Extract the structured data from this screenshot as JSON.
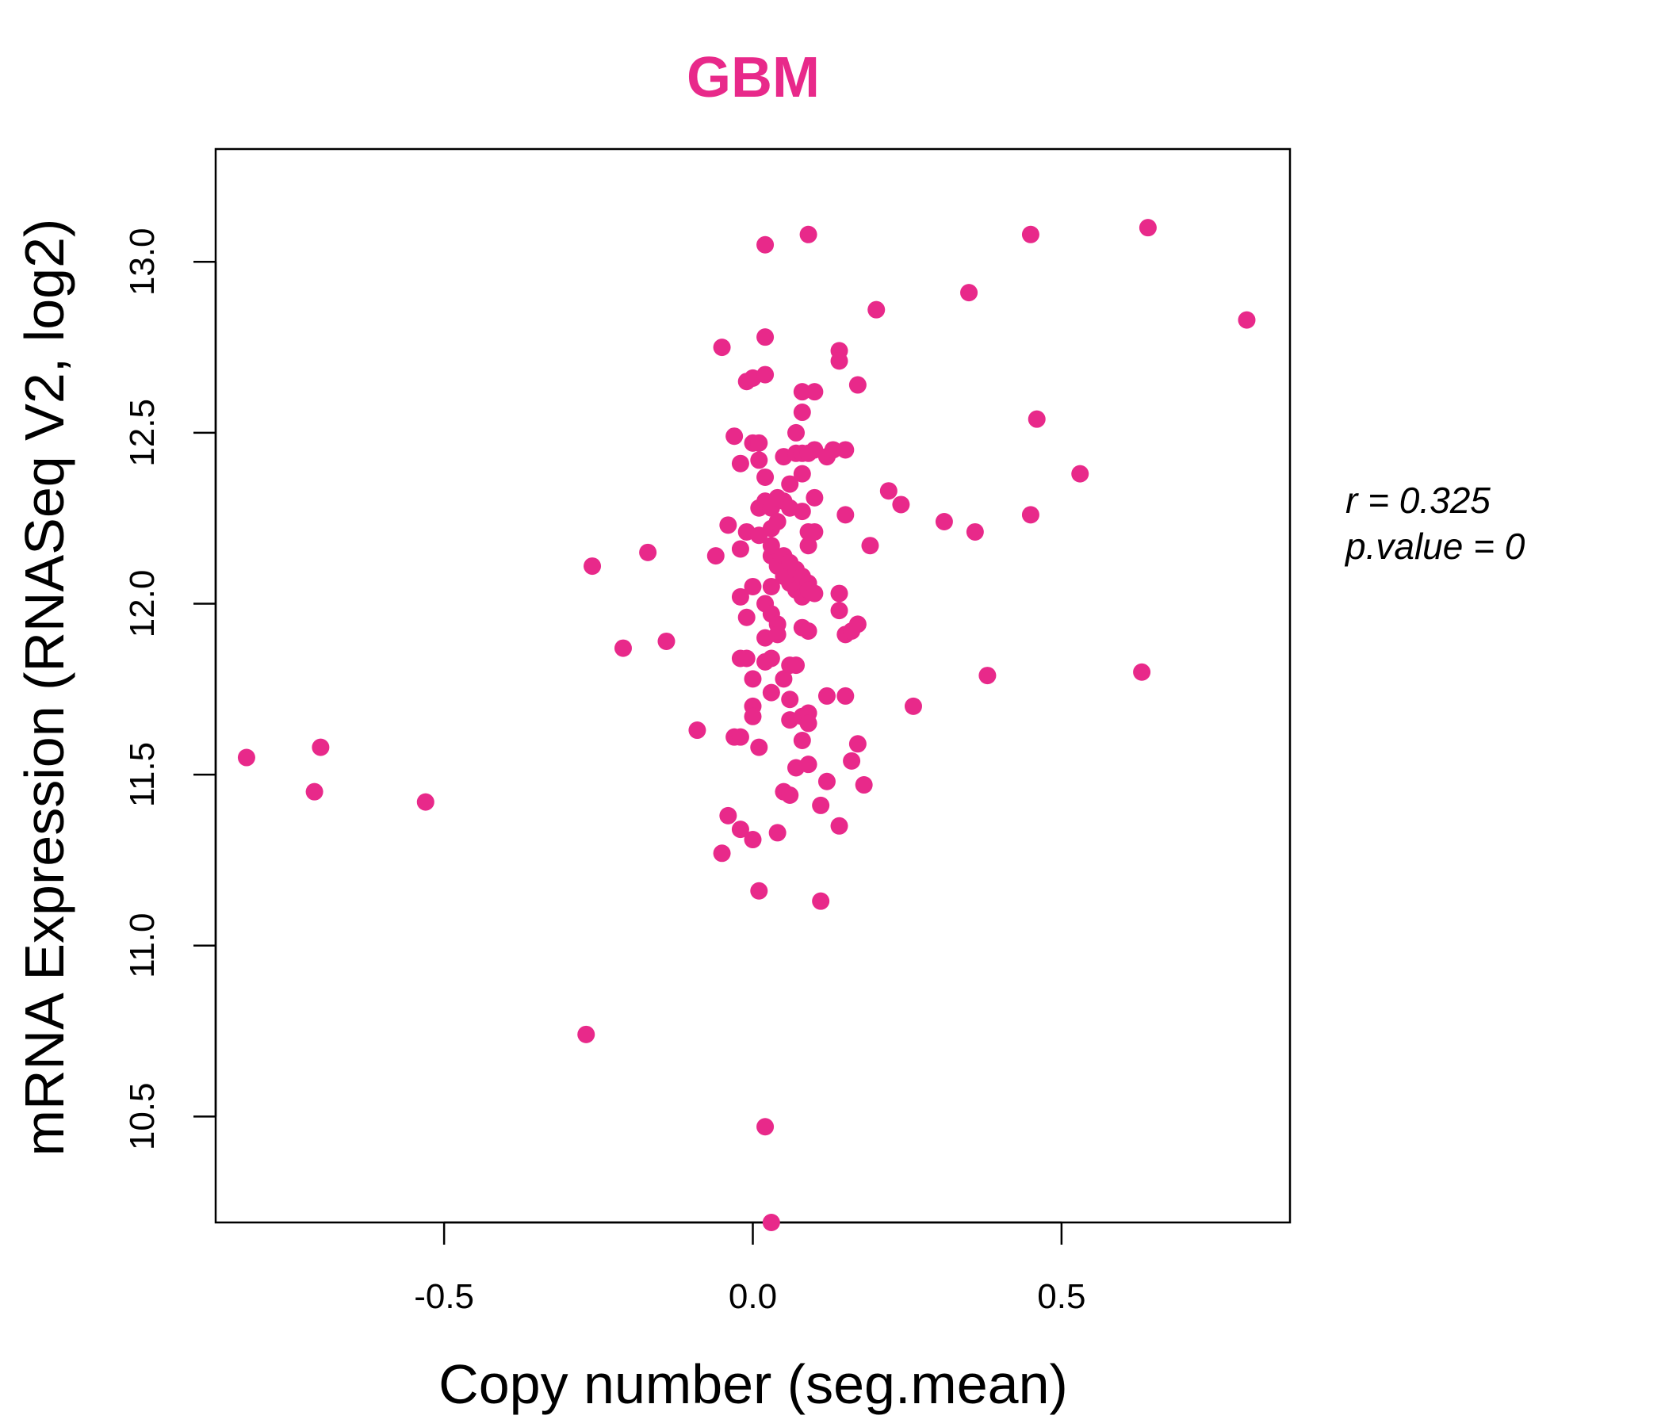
{
  "chart_data": {
    "type": "scatter",
    "title": "GBM",
    "xlabel": "Copy number (seg.mean)",
    "ylabel": "mRNA Expression (RNASeq V2, log2)",
    "xlim": [
      -0.87,
      0.87
    ],
    "ylim": [
      10.19,
      13.33
    ],
    "x_ticks": [
      -0.5,
      0.0,
      0.5
    ],
    "x_tick_labels": [
      "-0.5",
      "0.0",
      "0.5"
    ],
    "y_ticks": [
      10.5,
      11.0,
      11.5,
      12.0,
      12.5,
      13.0
    ],
    "y_tick_labels": [
      "10.5",
      "11.0",
      "11.5",
      "12.0",
      "12.5",
      "13.0"
    ],
    "grid": false,
    "point_color": "#e8298a",
    "title_color": "#e8298a",
    "stats": {
      "r_label": "r = 0.325",
      "p_label": "p.value = 0"
    },
    "points": [
      {
        "x": -0.82,
        "y": 11.55
      },
      {
        "x": -0.7,
        "y": 11.58
      },
      {
        "x": -0.71,
        "y": 11.45
      },
      {
        "x": -0.53,
        "y": 11.42
      },
      {
        "x": -0.26,
        "y": 12.11
      },
      {
        "x": -0.27,
        "y": 10.74
      },
      {
        "x": -0.21,
        "y": 11.87
      },
      {
        "x": -0.17,
        "y": 12.15
      },
      {
        "x": -0.14,
        "y": 11.89
      },
      {
        "x": -0.09,
        "y": 11.63
      },
      {
        "x": -0.06,
        "y": 12.14
      },
      {
        "x": -0.05,
        "y": 12.75
      },
      {
        "x": -0.05,
        "y": 11.27
      },
      {
        "x": -0.04,
        "y": 11.38
      },
      {
        "x": -0.04,
        "y": 12.23
      },
      {
        "x": -0.03,
        "y": 12.49
      },
      {
        "x": -0.03,
        "y": 11.61
      },
      {
        "x": -0.02,
        "y": 12.41
      },
      {
        "x": -0.02,
        "y": 12.16
      },
      {
        "x": -0.02,
        "y": 12.02
      },
      {
        "x": -0.02,
        "y": 11.84
      },
      {
        "x": -0.02,
        "y": 11.61
      },
      {
        "x": -0.02,
        "y": 11.34
      },
      {
        "x": -0.01,
        "y": 12.65
      },
      {
        "x": -0.01,
        "y": 12.21
      },
      {
        "x": -0.01,
        "y": 11.96
      },
      {
        "x": -0.01,
        "y": 11.84
      },
      {
        "x": 0.0,
        "y": 12.66
      },
      {
        "x": 0.0,
        "y": 12.47
      },
      {
        "x": 0.0,
        "y": 12.05
      },
      {
        "x": 0.0,
        "y": 11.78
      },
      {
        "x": 0.0,
        "y": 11.7
      },
      {
        "x": 0.0,
        "y": 11.67
      },
      {
        "x": 0.0,
        "y": 11.31
      },
      {
        "x": 0.01,
        "y": 12.42
      },
      {
        "x": 0.01,
        "y": 12.28
      },
      {
        "x": 0.01,
        "y": 11.58
      },
      {
        "x": 0.01,
        "y": 12.47
      },
      {
        "x": 0.01,
        "y": 12.2
      },
      {
        "x": 0.01,
        "y": 11.16
      },
      {
        "x": 0.02,
        "y": 12.37
      },
      {
        "x": 0.02,
        "y": 12.3
      },
      {
        "x": 0.02,
        "y": 12.0
      },
      {
        "x": 0.02,
        "y": 11.9
      },
      {
        "x": 0.02,
        "y": 11.83
      },
      {
        "x": 0.02,
        "y": 10.47
      },
      {
        "x": 0.02,
        "y": 13.05
      },
      {
        "x": 0.02,
        "y": 12.78
      },
      {
        "x": 0.02,
        "y": 12.67
      },
      {
        "x": 0.03,
        "y": 12.28
      },
      {
        "x": 0.03,
        "y": 12.14
      },
      {
        "x": 0.03,
        "y": 12.05
      },
      {
        "x": 0.03,
        "y": 11.74
      },
      {
        "x": 0.03,
        "y": 12.22
      },
      {
        "x": 0.03,
        "y": 12.17
      },
      {
        "x": 0.03,
        "y": 11.97
      },
      {
        "x": 0.03,
        "y": 11.84
      },
      {
        "x": 0.03,
        "y": 10.19
      },
      {
        "x": 0.04,
        "y": 12.31
      },
      {
        "x": 0.04,
        "y": 12.24
      },
      {
        "x": 0.04,
        "y": 12.11
      },
      {
        "x": 0.04,
        "y": 11.94
      },
      {
        "x": 0.04,
        "y": 11.91
      },
      {
        "x": 0.04,
        "y": 11.33
      },
      {
        "x": 0.05,
        "y": 12.43
      },
      {
        "x": 0.05,
        "y": 12.3
      },
      {
        "x": 0.05,
        "y": 12.14
      },
      {
        "x": 0.05,
        "y": 12.08
      },
      {
        "x": 0.05,
        "y": 11.78
      },
      {
        "x": 0.05,
        "y": 11.45
      },
      {
        "x": 0.06,
        "y": 12.35
      },
      {
        "x": 0.06,
        "y": 12.28
      },
      {
        "x": 0.06,
        "y": 12.12
      },
      {
        "x": 0.06,
        "y": 12.06
      },
      {
        "x": 0.06,
        "y": 11.82
      },
      {
        "x": 0.06,
        "y": 11.72
      },
      {
        "x": 0.06,
        "y": 11.66
      },
      {
        "x": 0.06,
        "y": 11.44
      },
      {
        "x": 0.07,
        "y": 12.5
      },
      {
        "x": 0.07,
        "y": 12.44
      },
      {
        "x": 0.07,
        "y": 12.1
      },
      {
        "x": 0.07,
        "y": 12.04
      },
      {
        "x": 0.07,
        "y": 11.82
      },
      {
        "x": 0.07,
        "y": 11.52
      },
      {
        "x": 0.08,
        "y": 12.56
      },
      {
        "x": 0.08,
        "y": 12.38
      },
      {
        "x": 0.08,
        "y": 12.27
      },
      {
        "x": 0.08,
        "y": 12.08
      },
      {
        "x": 0.08,
        "y": 11.67
      },
      {
        "x": 0.08,
        "y": 12.62
      },
      {
        "x": 0.08,
        "y": 12.44
      },
      {
        "x": 0.08,
        "y": 12.02
      },
      {
        "x": 0.08,
        "y": 11.93
      },
      {
        "x": 0.08,
        "y": 11.6
      },
      {
        "x": 0.09,
        "y": 12.17
      },
      {
        "x": 0.09,
        "y": 12.06
      },
      {
        "x": 0.09,
        "y": 11.68
      },
      {
        "x": 0.09,
        "y": 11.53
      },
      {
        "x": 0.09,
        "y": 13.08
      },
      {
        "x": 0.09,
        "y": 12.44
      },
      {
        "x": 0.09,
        "y": 12.21
      },
      {
        "x": 0.09,
        "y": 12.04
      },
      {
        "x": 0.09,
        "y": 11.92
      },
      {
        "x": 0.09,
        "y": 11.65
      },
      {
        "x": 0.1,
        "y": 12.62
      },
      {
        "x": 0.1,
        "y": 12.31
      },
      {
        "x": 0.1,
        "y": 12.21
      },
      {
        "x": 0.1,
        "y": 12.03
      },
      {
        "x": 0.1,
        "y": 12.45
      },
      {
        "x": 0.11,
        "y": 11.41
      },
      {
        "x": 0.11,
        "y": 11.13
      },
      {
        "x": 0.12,
        "y": 11.48
      },
      {
        "x": 0.12,
        "y": 12.43
      },
      {
        "x": 0.12,
        "y": 11.73
      },
      {
        "x": 0.13,
        "y": 12.45
      },
      {
        "x": 0.14,
        "y": 12.74
      },
      {
        "x": 0.14,
        "y": 12.71
      },
      {
        "x": 0.14,
        "y": 12.03
      },
      {
        "x": 0.14,
        "y": 11.98
      },
      {
        "x": 0.14,
        "y": 11.35
      },
      {
        "x": 0.15,
        "y": 12.45
      },
      {
        "x": 0.15,
        "y": 12.26
      },
      {
        "x": 0.15,
        "y": 11.73
      },
      {
        "x": 0.15,
        "y": 11.91
      },
      {
        "x": 0.16,
        "y": 11.54
      },
      {
        "x": 0.16,
        "y": 11.92
      },
      {
        "x": 0.17,
        "y": 12.64
      },
      {
        "x": 0.17,
        "y": 11.94
      },
      {
        "x": 0.17,
        "y": 11.59
      },
      {
        "x": 0.18,
        "y": 11.47
      },
      {
        "x": 0.19,
        "y": 12.17
      },
      {
        "x": 0.2,
        "y": 12.86
      },
      {
        "x": 0.22,
        "y": 12.33
      },
      {
        "x": 0.24,
        "y": 12.29
      },
      {
        "x": 0.26,
        "y": 11.7
      },
      {
        "x": 0.31,
        "y": 12.24
      },
      {
        "x": 0.35,
        "y": 12.91
      },
      {
        "x": 0.36,
        "y": 12.21
      },
      {
        "x": 0.38,
        "y": 11.79
      },
      {
        "x": 0.45,
        "y": 13.08
      },
      {
        "x": 0.45,
        "y": 12.26
      },
      {
        "x": 0.46,
        "y": 12.54
      },
      {
        "x": 0.53,
        "y": 12.38
      },
      {
        "x": 0.63,
        "y": 11.8
      },
      {
        "x": 0.64,
        "y": 13.1
      },
      {
        "x": 0.8,
        "y": 12.83
      }
    ]
  }
}
